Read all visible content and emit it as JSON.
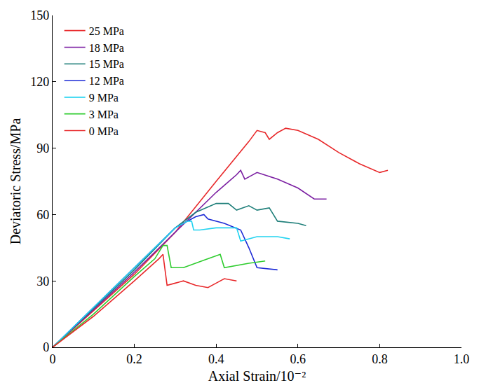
{
  "chart_data": {
    "type": "line",
    "x_label": "Axial Strain/10⁻²",
    "y_label": "Deviatoric Stress/MPa",
    "xlim": [
      0,
      1.0
    ],
    "xticks": [
      0,
      0.2,
      0.4,
      0.6,
      0.8,
      {
        "value": 1.0,
        "label": "1.0"
      }
    ],
    "ylim": [
      0,
      150
    ],
    "yticks": [
      0,
      30,
      60,
      90,
      120,
      150
    ],
    "grid": false,
    "legend": "upper left",
    "series": [
      {
        "name": "25 MPa",
        "color": "#e8282a",
        "x": [
          0,
          0.2,
          0.3,
          0.4,
          0.48,
          0.5,
          0.52,
          0.53,
          0.55,
          0.57,
          0.6,
          0.65,
          0.7,
          0.75,
          0.8,
          0.82
        ],
        "values": [
          0,
          33,
          52,
          75,
          93,
          98,
          97,
          94,
          97,
          99,
          98,
          94,
          88,
          83,
          79,
          80
        ]
      },
      {
        "name": "18 MPa",
        "color": "#7b1fa2",
        "x": [
          0,
          0.2,
          0.3,
          0.4,
          0.45,
          0.46,
          0.47,
          0.5,
          0.55,
          0.6,
          0.64,
          0.67
        ],
        "values": [
          0,
          34,
          52,
          70,
          78,
          80,
          76,
          79,
          76,
          72,
          67,
          67
        ]
      },
      {
        "name": "15 MPa",
        "color": "#1f7f7a",
        "x": [
          0,
          0.2,
          0.3,
          0.35,
          0.4,
          0.43,
          0.45,
          0.48,
          0.5,
          0.53,
          0.55,
          0.6,
          0.62
        ],
        "values": [
          0,
          35,
          54,
          61,
          65,
          65,
          62,
          64,
          62,
          63,
          57,
          56,
          55
        ]
      },
      {
        "name": "12 MPa",
        "color": "#1d2bd6",
        "x": [
          0,
          0.2,
          0.3,
          0.35,
          0.37,
          0.38,
          0.42,
          0.46,
          0.48,
          0.5,
          0.55
        ],
        "values": [
          0,
          36,
          54,
          59,
          60,
          58,
          56,
          53,
          45,
          36,
          35
        ]
      },
      {
        "name": "9 MPa",
        "color": "#22d3f0",
        "x": [
          0,
          0.2,
          0.3,
          0.33,
          0.34,
          0.345,
          0.36,
          0.4,
          0.45,
          0.46,
          0.5,
          0.55,
          0.58
        ],
        "values": [
          0,
          36,
          54,
          57,
          57,
          53,
          53,
          54,
          54,
          48,
          50,
          50,
          49
        ]
      },
      {
        "name": "3 MPa",
        "color": "#2ecc2e",
        "x": [
          0,
          0.1,
          0.2,
          0.25,
          0.27,
          0.28,
          0.29,
          0.32,
          0.38,
          0.41,
          0.42,
          0.48,
          0.52
        ],
        "values": [
          0,
          15,
          32,
          40,
          46,
          46,
          36,
          36,
          40,
          42,
          36,
          38,
          39
        ]
      },
      {
        "name": "0 MPa",
        "color": "#e8282a",
        "x": [
          0,
          0.1,
          0.2,
          0.26,
          0.27,
          0.28,
          0.3,
          0.32,
          0.35,
          0.38,
          0.4,
          0.42,
          0.45
        ],
        "values": [
          0,
          14,
          30,
          40,
          42,
          28,
          29,
          30,
          28,
          27,
          29,
          31,
          30
        ]
      }
    ]
  }
}
